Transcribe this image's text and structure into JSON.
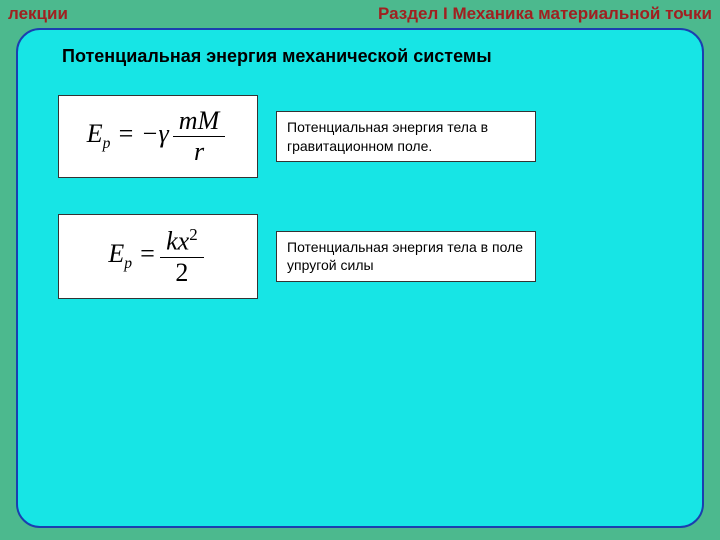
{
  "colors": {
    "outer_bg": "#4cb98e",
    "panel_bg": "#17e5e5",
    "panel_border": "#1a3fb0",
    "header_text": "#a02020"
  },
  "header": {
    "left": "лекции",
    "right": "Раздел I Механика материальной точки"
  },
  "title": "Потенциальная энергия механической системы",
  "rows": [
    {
      "formula_html": "<span>E<span class='sub'>p</span> = &minus;&gamma; </span><span class='frac'><span class='num'>mM</span><span class='den'>r</span></span>",
      "desc": "Потенциальная энергия  тела в гравитационном поле."
    },
    {
      "formula_html": "<span>E<span class='sub'>p</span> = </span><span class='frac'><span class='num'>kx<span class='sup'>2</span></span><span class='den' style='font-style:normal'>2</span></span>",
      "desc": "Потенциальная энергия  тела в поле упругой силы"
    }
  ]
}
